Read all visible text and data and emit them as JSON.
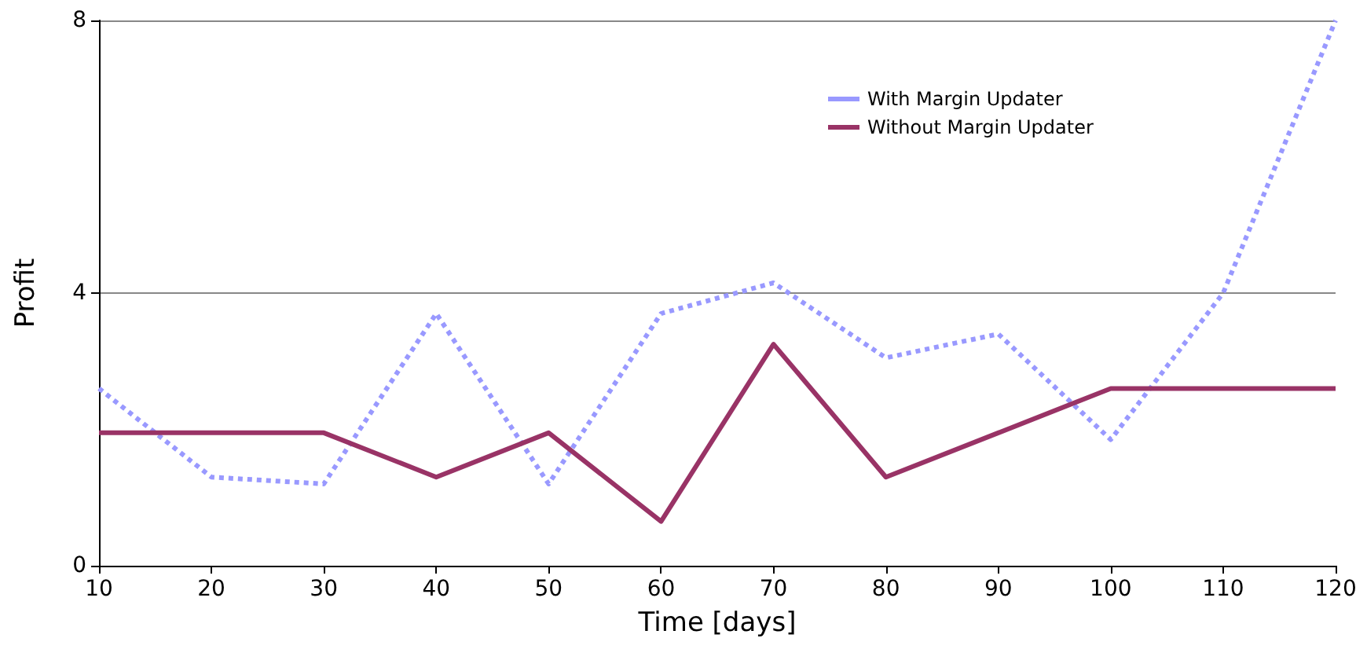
{
  "chart_data": {
    "type": "line",
    "xlabel": "Time [days]",
    "ylabel": "Profit",
    "x": [
      10,
      20,
      30,
      40,
      50,
      60,
      70,
      80,
      90,
      100,
      110,
      120
    ],
    "xlim": [
      10,
      120
    ],
    "xticks": [
      10,
      20,
      30,
      40,
      50,
      60,
      70,
      80,
      90,
      100,
      110,
      120
    ],
    "ylim": [
      0,
      8
    ],
    "yticks": [
      0,
      4,
      8
    ],
    "grid": "y",
    "legend": "top right",
    "marker": "none",
    "series": [
      {
        "name": "With Margin Updater",
        "color": "#9999ff",
        "line_style": "dotted",
        "values": [
          2.6,
          1.3,
          1.2,
          3.7,
          1.2,
          3.7,
          4.15,
          3.05,
          3.4,
          1.85,
          4.0,
          8.0
        ]
      },
      {
        "name": "Without Margin Updater",
        "color": "#993366",
        "line_style": "solid",
        "values": [
          1.95,
          1.95,
          1.95,
          1.3,
          1.95,
          0.65,
          3.25,
          1.3,
          1.95,
          2.6,
          2.6,
          2.6
        ]
      }
    ]
  }
}
